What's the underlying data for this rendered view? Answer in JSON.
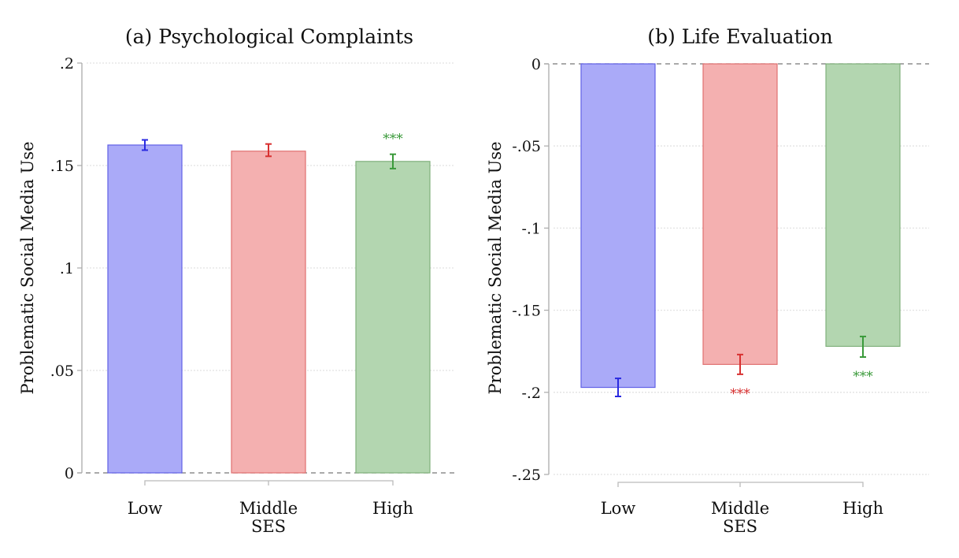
{
  "chart_data": [
    {
      "type": "bar",
      "title": "(a) Psychological Complaints",
      "xlabel": "SES",
      "ylabel": "Problematic Social Media Use",
      "categories": [
        "Low",
        "Middle",
        "High"
      ],
      "values": [
        0.16,
        0.157,
        0.152
      ],
      "ci_low": [
        0.1575,
        0.1545,
        0.1485
      ],
      "ci_high": [
        0.1625,
        0.1605,
        0.1555
      ],
      "significance": [
        "",
        "",
        "***"
      ],
      "colors": [
        "#aaaaf8",
        "#f4b0b0",
        "#b3d6b0"
      ],
      "edge_colors": [
        "#6060e6",
        "#e07070",
        "#80b07c"
      ],
      "errbar_colors": [
        "#2a2ae0",
        "#d83030",
        "#3a9a3a"
      ],
      "ylim": [
        0,
        0.2
      ],
      "yticks": [
        0,
        0.05,
        0.1,
        0.15,
        0.2
      ],
      "ytick_labels": [
        "0",
        ".05",
        ".1",
        ".15",
        ".2"
      ],
      "grid": true,
      "reference_line": 0
    },
    {
      "type": "bar",
      "title": "(b) Life Evaluation",
      "xlabel": "SES",
      "ylabel": "Problematic Social Media Use",
      "categories": [
        "Low",
        "Middle",
        "High"
      ],
      "values": [
        -0.197,
        -0.183,
        -0.172
      ],
      "ci_low": [
        -0.2025,
        -0.189,
        -0.1785
      ],
      "ci_high": [
        -0.1915,
        -0.177,
        -0.166
      ],
      "significance": [
        "",
        "***",
        "***"
      ],
      "colors": [
        "#aaaaf8",
        "#f4b0b0",
        "#b3d6b0"
      ],
      "edge_colors": [
        "#6060e6",
        "#e07070",
        "#80b07c"
      ],
      "errbar_colors": [
        "#2a2ae0",
        "#d83030",
        "#3a9a3a"
      ],
      "ylim": [
        -0.25,
        0
      ],
      "yticks": [
        -0.25,
        -0.2,
        -0.15,
        -0.1,
        -0.05,
        0
      ],
      "ytick_labels": [
        "-.25",
        "-.2",
        "-.15",
        "-.1",
        "-.05",
        "0"
      ],
      "grid": true,
      "reference_line": 0
    }
  ]
}
